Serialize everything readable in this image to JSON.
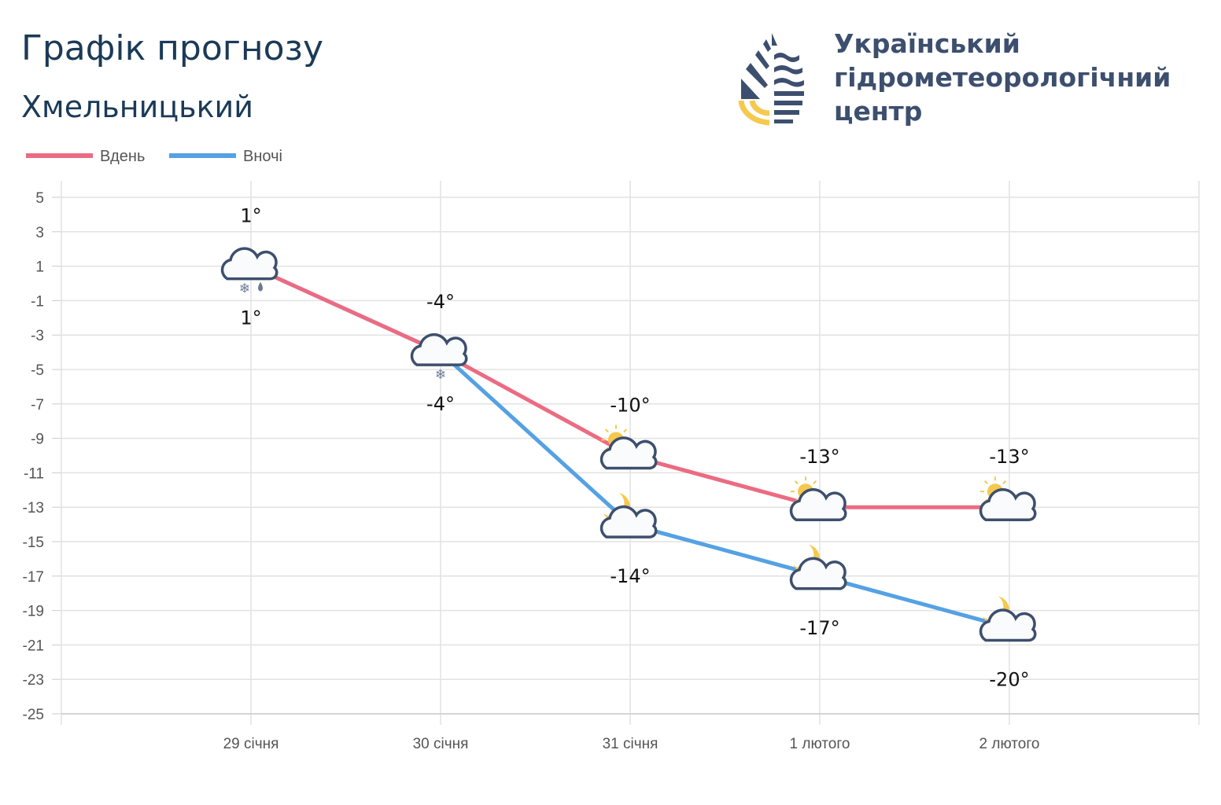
{
  "header": {
    "title": "Графік прогнозу",
    "city": "Хмельницький"
  },
  "organization": {
    "line1": "Український",
    "line2": "гідрометеорологічний",
    "line3": "центр"
  },
  "colors": {
    "day": "#ec6b82",
    "night": "#55a1e3",
    "icon": "#3d4f6e",
    "sun": "#f5c94e"
  },
  "chart_data": {
    "type": "line",
    "categories": [
      "29 січня",
      "30 січня",
      "31 січня",
      "1 лютого",
      "2 лютого"
    ],
    "ylim": [
      -25,
      5
    ],
    "yticks": [
      5,
      3,
      1,
      -1,
      -3,
      -5,
      -7,
      -9,
      -11,
      -13,
      -15,
      -17,
      -19,
      -21,
      -23,
      -25
    ],
    "grid": true,
    "legend_position": "top-left",
    "series": [
      {
        "name": "Вдень",
        "values": [
          1,
          -4,
          -10,
          -13,
          -13
        ],
        "labels": [
          "1°",
          "-4°",
          "-10°",
          "-13°",
          "-13°"
        ],
        "icons": [
          "cloud-snow-rain",
          "cloud-snow",
          "sun-cloud",
          "sun-cloud",
          "sun-cloud"
        ]
      },
      {
        "name": "Вночі",
        "values": [
          1,
          -4,
          -14,
          -17,
          -20
        ],
        "labels": [
          "1°",
          "-4°",
          "-14°",
          "-17°",
          "-20°"
        ],
        "icons": [
          "",
          "",
          "moon-cloud",
          "moon-cloud",
          "moon-cloud"
        ]
      }
    ]
  }
}
